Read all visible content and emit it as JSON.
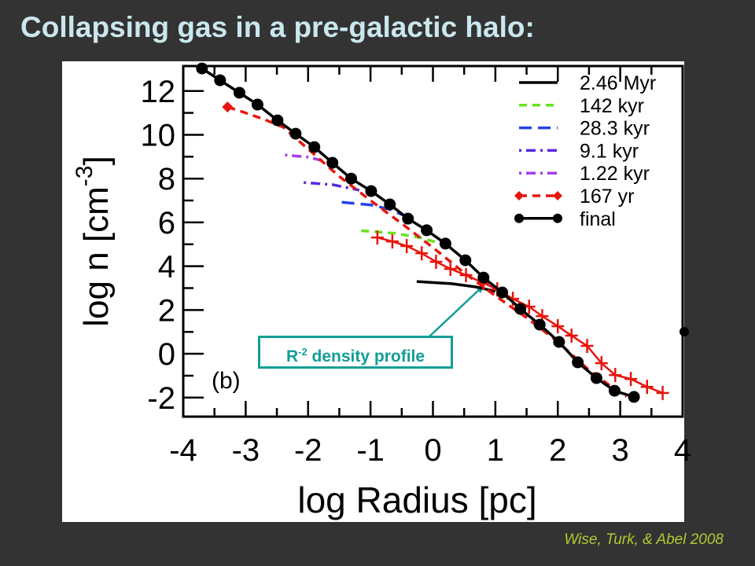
{
  "slide": {
    "title": "Collapsing gas in a pre-galactic halo:",
    "citation": "Wise, Turk, & Abel 2008",
    "annotation": {
      "prefix": "R",
      "exponent": "-2",
      "text": "density profile"
    },
    "panel_label": "(b)"
  },
  "chart_data": {
    "type": "line",
    "title": "",
    "xlabel": "log Radius [pc]",
    "ylabel": "log n [cm",
    "ylabel_exponent": "-3",
    "ylabel_suffix": "]",
    "xlim": [
      -4,
      4
    ],
    "ylim": [
      -2.87,
      13.14
    ],
    "xticks": [
      -4,
      -3,
      -2,
      -1,
      0,
      1,
      2,
      3,
      4
    ],
    "yticks": [
      -2,
      0,
      2,
      4,
      6,
      8,
      10,
      12
    ],
    "grid": false,
    "legend_position": "top-right",
    "series": [
      {
        "name": "2.46 Myr",
        "color": "#000000",
        "style": "solid",
        "marker": "none",
        "x": [
          -0.26,
          0.3,
          0.7,
          1.0
        ],
        "y": [
          3.3,
          3.2,
          3.05,
          2.85
        ]
      },
      {
        "name": "142 kyr",
        "color": "#66e21e",
        "style": "dash",
        "marker": "none",
        "x": [
          -1.15,
          -0.6,
          -0.2,
          0.1
        ],
        "y": [
          5.62,
          5.5,
          5.3,
          5.05
        ]
      },
      {
        "name": "28.3 kyr",
        "color": "#2244e6",
        "style": "longdash",
        "marker": "none",
        "x": [
          -1.46,
          -1.0,
          -0.7,
          -0.45
        ],
        "y": [
          6.92,
          6.8,
          6.6,
          6.3
        ]
      },
      {
        "name": "9.1 kyr",
        "color": "#5a28e0",
        "style": "dashdot",
        "marker": "none",
        "x": [
          -2.07,
          -1.6,
          -1.18
        ],
        "y": [
          7.82,
          7.72,
          7.47
        ]
      },
      {
        "name": "1.22 kyr",
        "color": "#a23ee8",
        "style": "dashdot",
        "marker": "none",
        "x": [
          -2.37,
          -2.0,
          -1.6
        ],
        "y": [
          9.08,
          8.98,
          8.7
        ]
      },
      {
        "name": "167 yr",
        "color": "#e8140c",
        "style": "dash",
        "marker": "diamond",
        "x": [
          -3.29,
          -3.0,
          -2.7,
          -2.4,
          -2.0,
          -1.5,
          -1.0,
          -0.5,
          0.0,
          0.5,
          1.0,
          1.5,
          2.0,
          2.5,
          3.0,
          3.1
        ],
        "y": [
          11.27,
          11.0,
          10.7,
          10.35,
          9.35,
          8.1,
          7.0,
          5.95,
          4.85,
          3.7,
          2.65,
          1.65,
          0.55,
          -0.75,
          -1.8,
          -1.95
        ]
      },
      {
        "name": "",
        "color": "#e8140c",
        "style": "solid",
        "marker": "plus",
        "x": [
          -0.89,
          -0.65,
          -0.42,
          -0.18,
          0.05,
          0.28,
          0.53,
          0.81,
          1.03,
          1.28,
          1.54,
          1.75,
          2.0,
          2.22,
          2.47,
          2.7,
          2.92,
          3.17,
          3.43,
          3.68
        ],
        "y": [
          5.31,
          5.13,
          4.92,
          4.59,
          4.2,
          3.88,
          3.59,
          3.23,
          2.94,
          2.51,
          2.15,
          1.72,
          1.26,
          0.83,
          0.36,
          -0.43,
          -0.97,
          -1.15,
          -1.51,
          -1.79
        ]
      },
      {
        "name": "final",
        "color": "#000000",
        "style": "solid",
        "marker": "circle",
        "x": [
          -3.7,
          -3.41,
          -3.1,
          -2.81,
          -2.49,
          -2.2,
          -1.9,
          -1.61,
          -1.31,
          -0.99,
          -0.69,
          -0.4,
          -0.1,
          0.2,
          0.52,
          0.81,
          1.11,
          1.4,
          1.71,
          2.02,
          2.32,
          2.62,
          2.91,
          3.22
        ],
        "y": [
          13.03,
          12.49,
          11.92,
          11.38,
          10.66,
          10.05,
          9.44,
          8.72,
          8.0,
          7.43,
          6.82,
          6.17,
          5.64,
          5.03,
          4.27,
          3.48,
          2.8,
          2.05,
          1.33,
          0.54,
          -0.39,
          -1.11,
          -1.69,
          -1.97
        ]
      }
    ]
  }
}
